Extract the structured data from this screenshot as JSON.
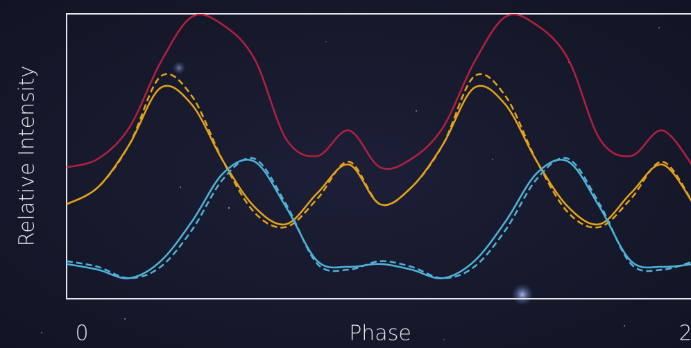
{
  "chart_data": {
    "type": "line",
    "x_label": "Phase",
    "y_label": "Relative Intensity",
    "x": [
      0,
      0.1,
      0.2,
      0.3,
      0.4,
      0.5,
      0.6,
      0.7,
      0.8,
      0.9,
      1,
      1.1,
      1.2,
      1.3,
      1.4,
      1.5,
      1.6,
      1.7,
      1.8,
      1.9,
      2
    ],
    "xlim": [
      0,
      2
    ],
    "xticks": [
      0,
      2
    ],
    "ylim": [
      0,
      1
    ],
    "series": [
      {
        "color": "#b31f3e",
        "dash": false,
        "values": [
          0.46,
          0.49,
          0.6,
          0.83,
          0.99,
          0.96,
          0.84,
          0.56,
          0.5,
          0.59,
          0.46,
          0.49,
          0.6,
          0.83,
          0.99,
          0.96,
          0.84,
          0.56,
          0.5,
          0.59,
          0.46
        ]
      },
      {
        "color": "#e3a21a",
        "dash": true,
        "values": [
          0.33,
          0.39,
          0.54,
          0.78,
          0.71,
          0.48,
          0.3,
          0.25,
          0.35,
          0.48,
          0.33,
          0.39,
          0.54,
          0.78,
          0.71,
          0.48,
          0.3,
          0.25,
          0.35,
          0.48,
          0.33
        ]
      },
      {
        "color": "#e3a21a",
        "dash": false,
        "values": [
          0.33,
          0.39,
          0.54,
          0.74,
          0.68,
          0.48,
          0.32,
          0.26,
          0.37,
          0.47,
          0.33,
          0.39,
          0.54,
          0.74,
          0.68,
          0.48,
          0.32,
          0.26,
          0.37,
          0.47,
          0.33
        ]
      },
      {
        "color": "#4fb2d6",
        "dash": true,
        "values": [
          0.13,
          0.11,
          0.07,
          0.11,
          0.24,
          0.42,
          0.49,
          0.33,
          0.12,
          0.1,
          0.13,
          0.11,
          0.07,
          0.11,
          0.24,
          0.42,
          0.49,
          0.33,
          0.12,
          0.1,
          0.13
        ]
      },
      {
        "color": "#4fb2d6",
        "dash": false,
        "values": [
          0.12,
          0.1,
          0.07,
          0.13,
          0.27,
          0.44,
          0.48,
          0.32,
          0.13,
          0.11,
          0.12,
          0.1,
          0.07,
          0.13,
          0.27,
          0.44,
          0.48,
          0.32,
          0.13,
          0.11,
          0.12
        ]
      }
    ]
  }
}
